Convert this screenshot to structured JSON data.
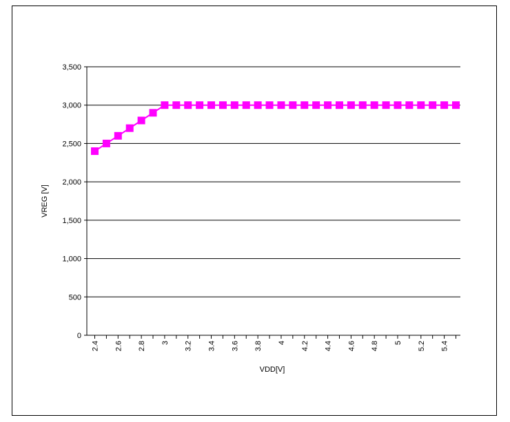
{
  "chart_data": {
    "type": "line",
    "title": "",
    "xlabel": "VDD[V]",
    "ylabel": "VREG [V]",
    "x": [
      2.4,
      2.5,
      2.6,
      2.7,
      2.8,
      2.9,
      3.0,
      3.1,
      3.2,
      3.3,
      3.4,
      3.5,
      3.6,
      3.7,
      3.8,
      3.9,
      4.0,
      4.1,
      4.2,
      4.3,
      4.4,
      4.5,
      4.6,
      4.7,
      4.8,
      4.9,
      5.0,
      5.1,
      5.2,
      5.3,
      5.4,
      5.5
    ],
    "series": [
      {
        "color": "#ff00ff",
        "values": [
          2400,
          2500,
          2600,
          2700,
          2800,
          2900,
          3000,
          3000,
          3000,
          3000,
          3000,
          3000,
          3000,
          3000,
          3000,
          3000,
          3000,
          3000,
          3000,
          3000,
          3000,
          3000,
          3000,
          3000,
          3000,
          3000,
          3000,
          3000,
          3000,
          3000,
          3000,
          3000
        ]
      }
    ],
    "ylim": [
      0,
      3500
    ],
    "y_ticks": [
      0,
      500,
      1000,
      1500,
      2000,
      2500,
      3000,
      3500
    ],
    "y_tick_labels": [
      "0",
      "500",
      "1,000",
      "1,500",
      "2,000",
      "2,500",
      "3,000",
      "3,500"
    ],
    "x_tick_labels": [
      "2.4",
      "2.6",
      "2.8",
      "3",
      "3.2",
      "3.4",
      "3.6",
      "3.8",
      "4",
      "4.2",
      "4.4",
      "4.6",
      "4.8",
      "5",
      "5.2",
      "5.4"
    ],
    "grid": "horizontal",
    "legend": "none"
  }
}
